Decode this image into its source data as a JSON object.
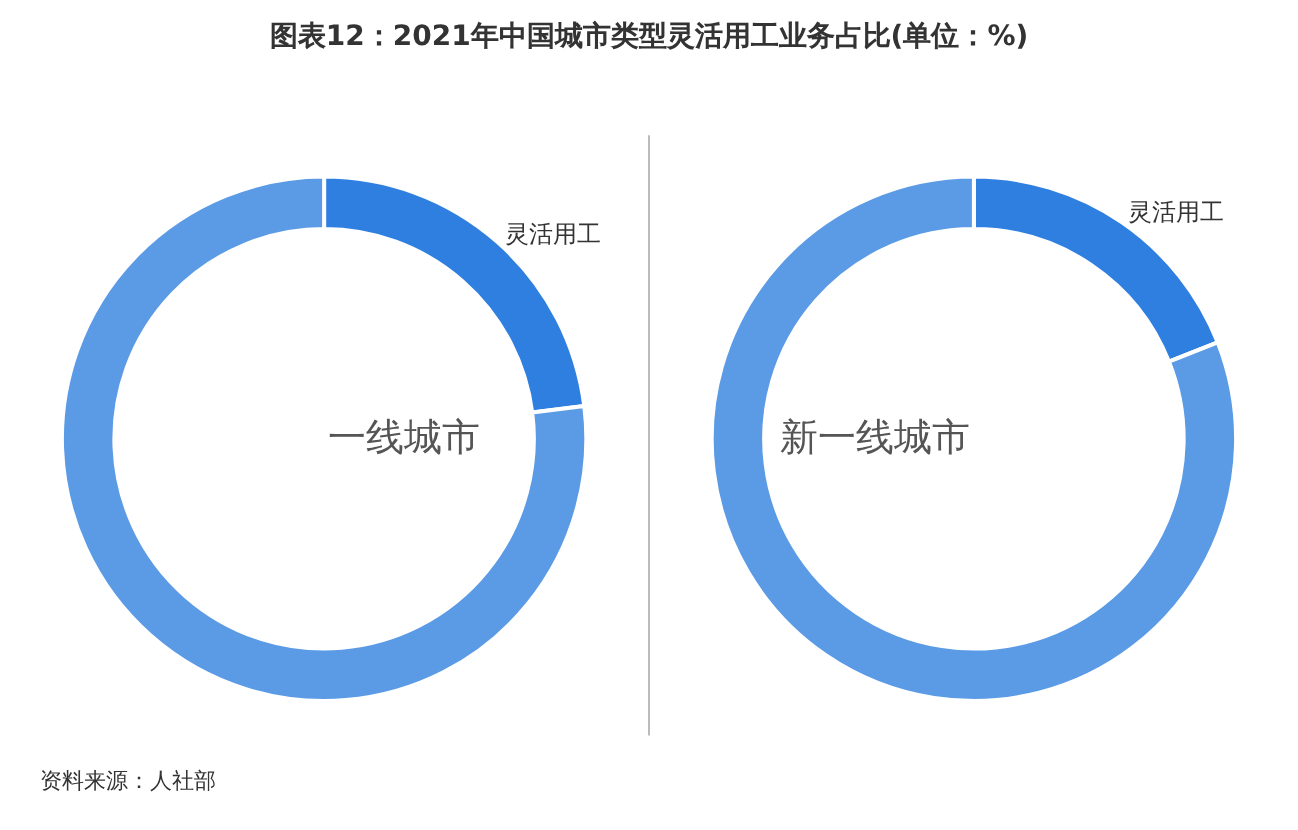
{
  "chart_data": [
    {
      "type": "donut",
      "title": "图表12：2021年中国城市类型灵活用工业务占比(单位：%)",
      "categories": [
        "灵活用工",
        null
      ],
      "values": [
        23,
        77
      ],
      "colors": [
        "#2f7fe0",
        "#5b9be6"
      ],
      "annotations": [
        "一线城市",
        "资料来源：人社部"
      ],
      "legend": false
    },
    {
      "type": "donut",
      "categories": [
        "灵活用工",
        null
      ],
      "values": [
        19,
        81
      ],
      "colors": [
        "#2f7fe0",
        "#5b9be6"
      ],
      "annotations": [
        "新一线城市"
      ],
      "legend": false
    }
  ]
}
